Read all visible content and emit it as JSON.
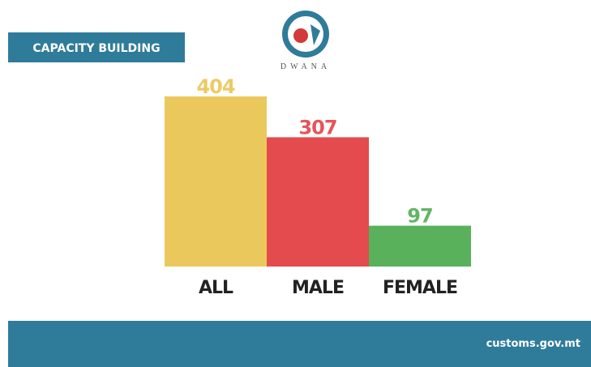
{
  "header": {
    "title": "CAPACITY BUILDING",
    "logo_text": "DWANA"
  },
  "chart_data": {
    "type": "bar",
    "categories": [
      "ALL",
      "MALE",
      "FEMALE"
    ],
    "values": [
      404,
      307,
      97
    ],
    "colors": [
      "#e9c24a",
      "#e0373c",
      "#47a84a"
    ]
  },
  "footer": {
    "url": "customs.gov.mt"
  }
}
